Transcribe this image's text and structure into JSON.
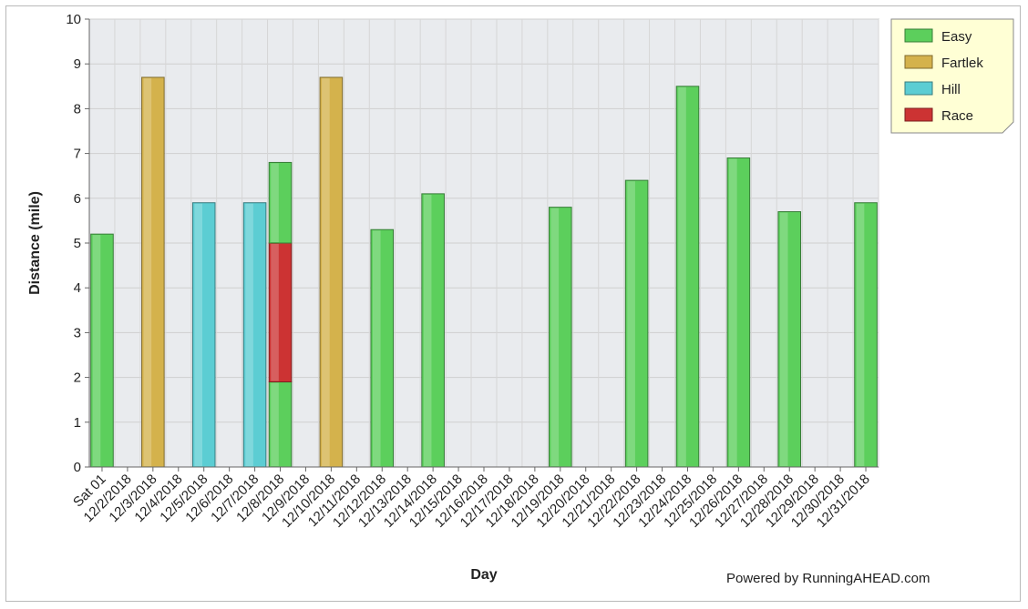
{
  "chart_data": {
    "type": "bar",
    "stacked": true,
    "xlabel": "Day",
    "ylabel": "Distance (mile)",
    "ylim": [
      0,
      10
    ],
    "y_ticks": [
      "0",
      "1",
      "2",
      "3",
      "4",
      "5",
      "6",
      "7",
      "8",
      "9",
      "10"
    ],
    "grid": true,
    "legend_position": "top-right",
    "categories": [
      "Sat 01",
      "12/2/2018",
      "12/3/2018",
      "12/4/2018",
      "12/5/2018",
      "12/6/2018",
      "12/7/2018",
      "12/8/2018",
      "12/9/2018",
      "12/10/2018",
      "12/11/2018",
      "12/12/2018",
      "12/13/2018",
      "12/14/2018",
      "12/15/2018",
      "12/16/2018",
      "12/17/2018",
      "12/18/2018",
      "12/19/2018",
      "12/20/2018",
      "12/21/2018",
      "12/22/2018",
      "12/23/2018",
      "12/24/2018",
      "12/25/2018",
      "12/26/2018",
      "12/27/2018",
      "12/28/2018",
      "12/29/2018",
      "12/30/2018",
      "12/31/2018"
    ],
    "series": [
      {
        "name": "Easy",
        "color": "#5ccf5c",
        "values": [
          5.2,
          0,
          0,
          0,
          0,
          0,
          0,
          1.9,
          0,
          0,
          0,
          5.3,
          0,
          6.1,
          0,
          0,
          0,
          0,
          5.8,
          0,
          0,
          6.4,
          0,
          8.5,
          0,
          6.9,
          0,
          5.7,
          0,
          0,
          5.9
        ]
      },
      {
        "name": "Fartlek",
        "color": "#d4b24c",
        "values": [
          0,
          0,
          8.7,
          0,
          0,
          0,
          0,
          0,
          0,
          8.7,
          0,
          0,
          0,
          0,
          0,
          0,
          0,
          0,
          0,
          0,
          0,
          0,
          0,
          0,
          0,
          0,
          0,
          0,
          0,
          0,
          0
        ]
      },
      {
        "name": "Hill",
        "color": "#5ccdd3",
        "values": [
          0,
          0,
          0,
          0,
          5.9,
          0,
          5.9,
          0,
          0,
          0,
          0,
          0,
          0,
          0,
          0,
          0,
          0,
          0,
          0,
          0,
          0,
          0,
          0,
          0,
          0,
          0,
          0,
          0,
          0,
          0,
          0
        ]
      },
      {
        "name": "Race",
        "color": "#cc3333",
        "values": [
          0,
          0,
          0,
          0,
          0,
          0,
          0,
          3.1,
          0,
          0,
          0,
          0,
          0,
          0,
          0,
          0,
          0,
          0,
          0,
          0,
          0,
          0,
          0,
          0,
          0,
          0,
          0,
          0,
          0,
          0,
          0
        ]
      },
      {
        "name": "Easy",
        "color": "#5ccf5c",
        "values": [
          0,
          0,
          0,
          0,
          0,
          0,
          0,
          1.8,
          0,
          0,
          0,
          0,
          0,
          0,
          0,
          0,
          0,
          0,
          0,
          0,
          0,
          0,
          0,
          0,
          0,
          0,
          0,
          0,
          0,
          0,
          0
        ],
        "legend": false
      }
    ],
    "legend": [
      {
        "name": "Easy",
        "color": "#5ccf5c"
      },
      {
        "name": "Fartlek",
        "color": "#d4b24c"
      },
      {
        "name": "Hill",
        "color": "#5ccdd3"
      },
      {
        "name": "Race",
        "color": "#cc3333"
      }
    ]
  },
  "footer": {
    "credit": "Powered by RunningAHEAD.com"
  }
}
